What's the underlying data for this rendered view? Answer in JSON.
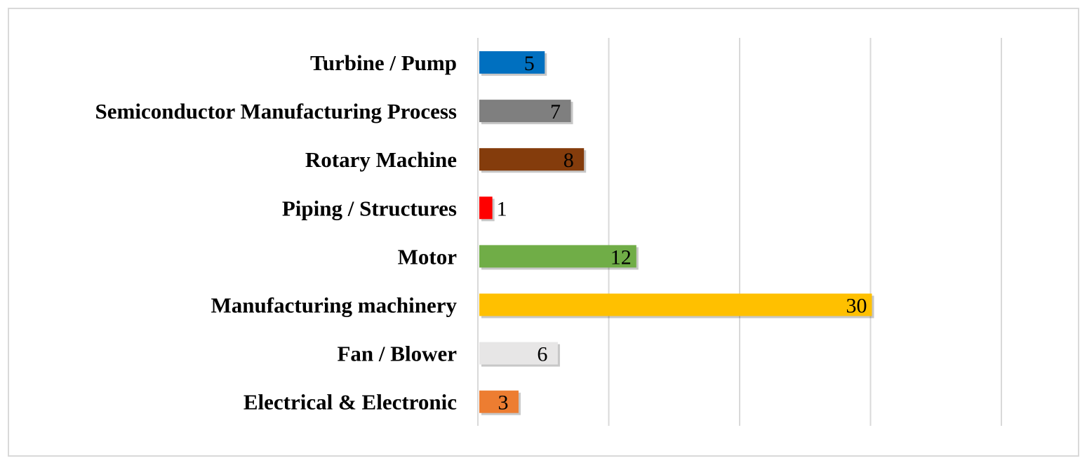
{
  "chart_data": {
    "type": "bar",
    "orientation": "horizontal",
    "title": "",
    "xlabel": "",
    "ylabel": "",
    "categories": [
      "Turbine / Pump",
      "Semiconductor Manufacturing Process",
      "Rotary Machine",
      "Piping / Structures",
      "Motor",
      "Manufacturing machinery",
      "Fan / Blower",
      "Electrical & Electronic"
    ],
    "values": [
      5,
      7,
      8,
      1,
      12,
      30,
      6,
      3
    ],
    "colors": [
      "#0070c0",
      "#7f7f7f",
      "#843c0c",
      "#ff0000",
      "#70ad47",
      "#ffc000",
      "#e7e6e6",
      "#ed7d31"
    ],
    "xlim": [
      0,
      40
    ],
    "x_gridlines": [
      10,
      20,
      30,
      40
    ],
    "grid": true,
    "data_labels": true,
    "legend": "none",
    "x_tick_labels_shown": false
  }
}
